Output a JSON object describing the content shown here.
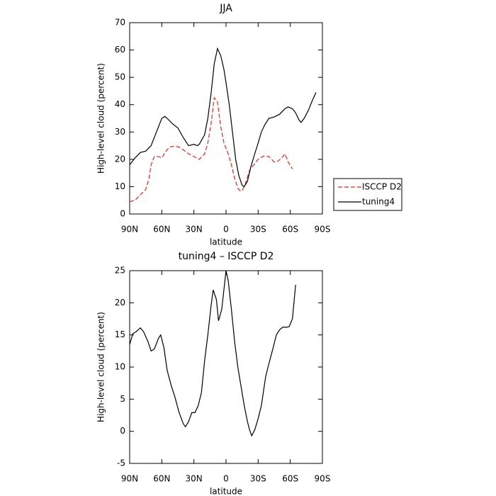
{
  "chart_data": [
    {
      "type": "line",
      "title": "JJA",
      "xlabel": "latitude",
      "ylabel": "High-level cloud (percent)",
      "xlim": [
        90,
        -90
      ],
      "ylim": [
        0,
        70
      ],
      "xticks": [
        {
          "value": 90,
          "label": "90N"
        },
        {
          "value": 60,
          "label": "60N"
        },
        {
          "value": 30,
          "label": "30N"
        },
        0,
        {
          "value": -30,
          "label": "30S"
        },
        {
          "value": -60,
          "label": "60S"
        },
        {
          "value": -90,
          "label": "90S"
        }
      ],
      "yticks": [
        0,
        10,
        20,
        30,
        40,
        50,
        60,
        70
      ],
      "series": [
        {
          "name": "ISCCP D2",
          "color": "#e8261f",
          "linestyle": "dashed",
          "x": [
            90,
            85,
            80,
            75,
            72,
            70,
            67,
            63,
            60,
            57,
            53,
            48,
            44,
            40,
            35,
            30,
            25,
            20,
            17,
            14,
            11,
            8,
            5,
            2,
            -2,
            -5,
            -8,
            -11,
            -13,
            -15,
            -18,
            -22,
            -26,
            -30,
            -35,
            -40,
            -45,
            -48,
            -52,
            -55,
            -58,
            -62
          ],
          "values": [
            4.5,
            5,
            7,
            9,
            13,
            18,
            21,
            21,
            20.5,
            22.5,
            24.5,
            24.8,
            24.5,
            23.5,
            22,
            21,
            20,
            22,
            26,
            33,
            42.5,
            41,
            32,
            26,
            22,
            18,
            13,
            9.5,
            8.5,
            8.5,
            11,
            16,
            18,
            20,
            21.2,
            21,
            19,
            19.2,
            20.5,
            22,
            19,
            16.5
          ]
        },
        {
          "name": "tuning4",
          "color": "#000000",
          "linestyle": "solid",
          "x": [
            90,
            85,
            80,
            75,
            70,
            65,
            60,
            57,
            55,
            50,
            45,
            40,
            35,
            30,
            27,
            25,
            20,
            17,
            14,
            11,
            8,
            5,
            2,
            0,
            -3,
            -6,
            -9,
            -12,
            -15,
            -17,
            -20,
            -23,
            -26,
            -30,
            -33,
            -36,
            -40,
            -45,
            -50,
            -55,
            -58,
            -62,
            -65,
            -68,
            -70,
            -73,
            -77,
            -80,
            -84
          ],
          "values": [
            18,
            20.5,
            22.5,
            23,
            25,
            30,
            35,
            35.7,
            35,
            33,
            31.5,
            28,
            25,
            25.5,
            25,
            25.5,
            29,
            35,
            44,
            55,
            60.5,
            58,
            53,
            48,
            40,
            30,
            20,
            14,
            10.5,
            10,
            12,
            17,
            21,
            26,
            30,
            32.5,
            35,
            35.5,
            36.5,
            38.5,
            39.2,
            38.5,
            37,
            34.5,
            33.5,
            35,
            38,
            41,
            44.5
          ]
        }
      ]
    },
    {
      "type": "line",
      "title": "tuning4 – ISCCP D2",
      "xlabel": "latitude",
      "ylabel": "High-level cloud (percent)",
      "xlim": [
        90,
        -90
      ],
      "ylim": [
        -5,
        25
      ],
      "xticks": [
        {
          "value": 90,
          "label": "90N"
        },
        {
          "value": 60,
          "label": "60N"
        },
        {
          "value": 30,
          "label": "30N"
        },
        0,
        {
          "value": -30,
          "label": "30S"
        },
        {
          "value": -60,
          "label": "60S"
        },
        {
          "value": -90,
          "label": "90S"
        }
      ],
      "yticks": [
        -5,
        0,
        5,
        10,
        15,
        20,
        25
      ],
      "color": "#000000",
      "x": [
        90,
        87,
        84,
        80,
        77,
        73,
        70,
        67,
        63,
        61,
        58,
        55,
        51,
        48,
        44,
        40,
        38,
        35,
        32,
        29,
        26,
        23,
        20,
        17,
        14,
        12,
        9,
        7,
        4,
        2,
        0,
        -2,
        -5,
        -8,
        -11,
        -14,
        -17,
        -20,
        -22,
        -24,
        -27,
        -30,
        -33,
        -37,
        -40,
        -44,
        -47,
        -50,
        -53,
        -57,
        -59,
        -62,
        -65
      ],
      "values": [
        13.5,
        15.2,
        15.5,
        16.1,
        15.5,
        14,
        12.5,
        12.8,
        14.5,
        15,
        13,
        9.5,
        7,
        5.5,
        3,
        1.2,
        0.7,
        1.5,
        2.9,
        2.9,
        4,
        6,
        11,
        15,
        19.5,
        22,
        20.5,
        17.2,
        19,
        22,
        25,
        23.5,
        19,
        14,
        10,
        7,
        4,
        1.5,
        0.2,
        -0.7,
        0.3,
        2,
        4,
        8.5,
        10.5,
        13,
        15,
        15.8,
        16.2,
        16.2,
        16.3,
        17.5,
        22.8
      ]
    }
  ]
}
